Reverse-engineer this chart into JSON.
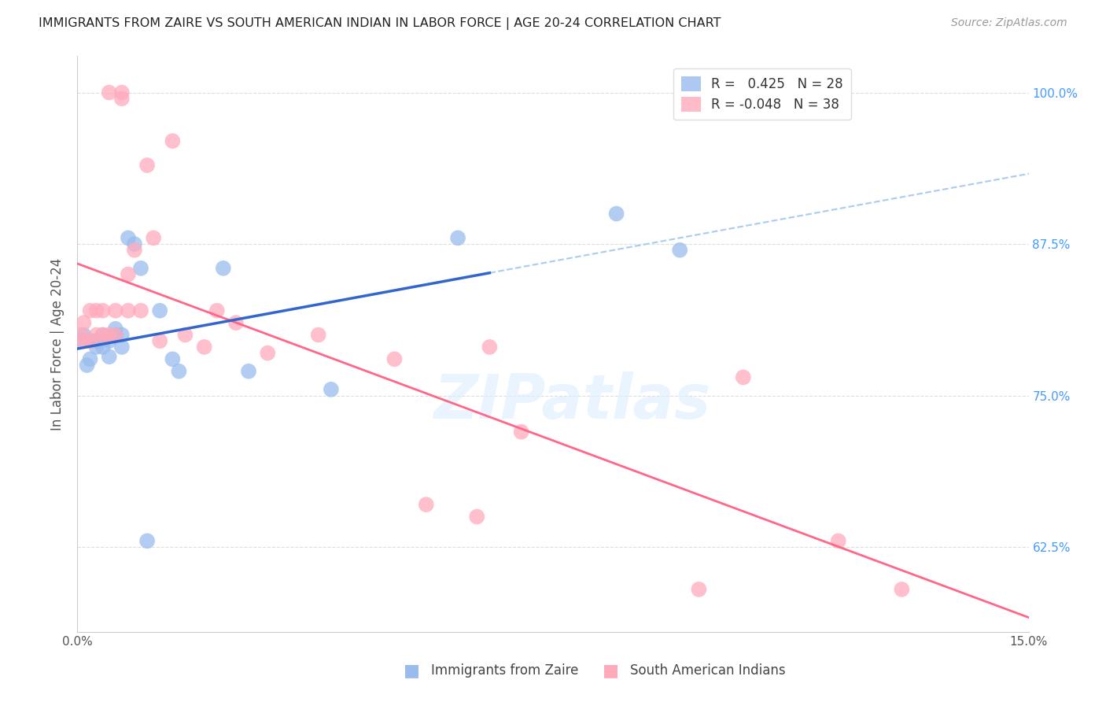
{
  "title": "IMMIGRANTS FROM ZAIRE VS SOUTH AMERICAN INDIAN IN LABOR FORCE | AGE 20-24 CORRELATION CHART",
  "source": "Source: ZipAtlas.com",
  "ylabel": "In Labor Force | Age 20-24",
  "xlim": [
    0.0,
    0.15
  ],
  "ylim": [
    0.555,
    1.03
  ],
  "yticks": [
    0.625,
    0.75,
    0.875,
    1.0
  ],
  "ytick_labels": [
    "62.5%",
    "75.0%",
    "87.5%",
    "100.0%"
  ],
  "xticks": [
    0.0,
    0.025,
    0.05,
    0.075,
    0.1,
    0.125,
    0.15
  ],
  "xtick_labels": [
    "0.0%",
    "",
    "",
    "",
    "",
    "",
    "15.0%"
  ],
  "r_zaire": 0.425,
  "n_zaire": 28,
  "r_sa": -0.048,
  "n_sa": 38,
  "zaire_color": "#99BBEE",
  "sa_color": "#FFAABB",
  "zaire_line_color": "#3366CC",
  "sa_line_color": "#FF6688",
  "dash_color": "#AACCEE",
  "background": "#ffffff",
  "watermark": "ZIPatlas",
  "zaire_x": [
    0.0008,
    0.001,
    0.0015,
    0.002,
    0.002,
    0.003,
    0.003,
    0.004,
    0.004,
    0.005,
    0.005,
    0.006,
    0.006,
    0.007,
    0.007,
    0.008,
    0.009,
    0.01,
    0.011,
    0.013,
    0.015,
    0.016,
    0.023,
    0.027,
    0.04,
    0.06,
    0.085,
    0.095
  ],
  "zaire_y": [
    0.795,
    0.8,
    0.775,
    0.78,
    0.795,
    0.79,
    0.795,
    0.79,
    0.8,
    0.782,
    0.795,
    0.8,
    0.805,
    0.79,
    0.8,
    0.88,
    0.875,
    0.855,
    0.63,
    0.82,
    0.78,
    0.77,
    0.855,
    0.77,
    0.755,
    0.88,
    0.9,
    0.87
  ],
  "sa_x": [
    0.0005,
    0.001,
    0.001,
    0.002,
    0.002,
    0.003,
    0.003,
    0.004,
    0.004,
    0.005,
    0.005,
    0.006,
    0.006,
    0.007,
    0.007,
    0.008,
    0.008,
    0.009,
    0.01,
    0.011,
    0.012,
    0.013,
    0.015,
    0.017,
    0.02,
    0.022,
    0.025,
    0.03,
    0.038,
    0.05,
    0.055,
    0.063,
    0.065,
    0.07,
    0.098,
    0.105,
    0.12,
    0.13
  ],
  "sa_y": [
    0.8,
    0.795,
    0.81,
    0.795,
    0.82,
    0.8,
    0.82,
    0.8,
    0.82,
    0.8,
    1.0,
    0.8,
    0.82,
    1.0,
    0.995,
    0.82,
    0.85,
    0.87,
    0.82,
    0.94,
    0.88,
    0.795,
    0.96,
    0.8,
    0.79,
    0.82,
    0.81,
    0.785,
    0.8,
    0.78,
    0.66,
    0.65,
    0.79,
    0.72,
    0.59,
    0.765,
    0.63,
    0.59
  ]
}
